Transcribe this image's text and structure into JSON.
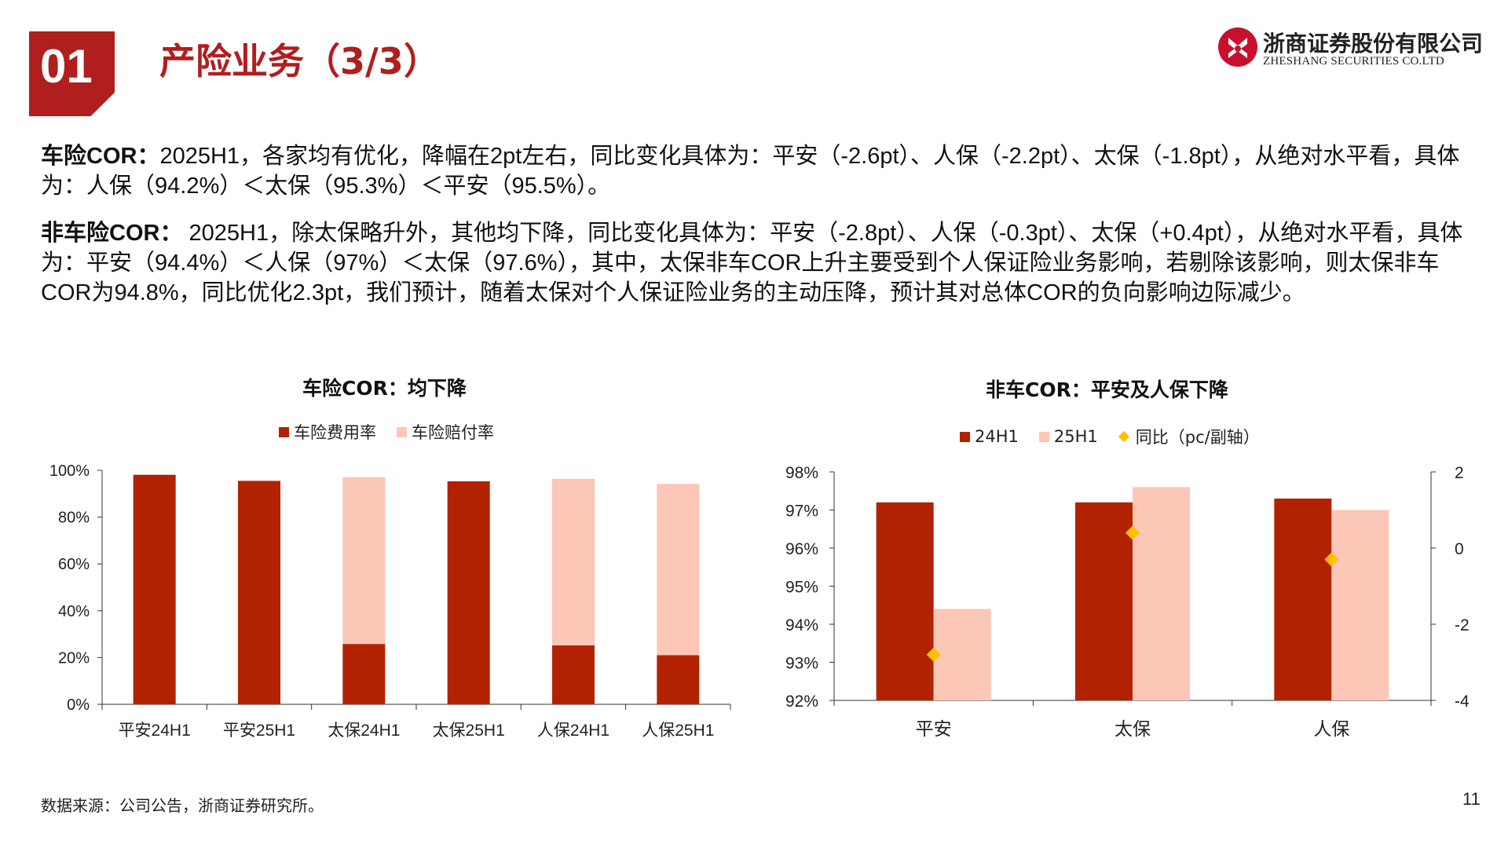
{
  "header": {
    "section_number": "01",
    "title": "产险业务（3/3）",
    "logo": {
      "name_cn": "浙商证券股份有限公司",
      "name_en": "ZHESHANG SECURITIES CO.LTD"
    }
  },
  "paragraphs": {
    "p1_label": "车险COR：",
    "p1_text": "2025H1，各家均有优化，降幅在2pt左右，同比变化具体为：平安（-2.6pt）、人保（-2.2pt）、太保（-1.8pt），从绝对水平看，具体为：人保（94.2%）＜太保（95.3%）＜平安（95.5%）。",
    "p2_label": "非车险COR：",
    "p2_text": " 2025H1，除太保略升外，其他均下降，同比变化具体为：平安（-2.8pt）、人保（-0.3pt）、太保（+0.4pt），从绝对水平看，具体为：平安（94.4%）＜人保（97%）＜太保（97.6%），其中，太保非车COR上升主要受到个人保证险业务影响，若剔除该影响，则太保非车COR为94.8%，同比优化2.3pt，我们预计，随着太保对个人保证险业务的主动压降，预计其对总体COR的负向影响边际减少。"
  },
  "chart_data": [
    {
      "type": "bar",
      "stacked": true,
      "title": "车险COR：均下降",
      "categories": [
        "平安24H1",
        "平安25H1",
        "太保24H1",
        "太保25H1",
        "人保24H1",
        "人保25H1"
      ],
      "series": [
        {
          "name": "车险费用率",
          "color": "#b22200",
          "values": [
            98.1,
            95.5,
            25.8,
            95.3,
            25.2,
            21.0
          ]
        },
        {
          "name": "车险赔付率",
          "color": "#fcc7b7",
          "values": [
            0,
            0,
            71.3,
            0,
            71.2,
            73.2
          ]
        }
      ],
      "ylim": [
        0,
        100
      ],
      "yticks": [
        "0%",
        "20%",
        "40%",
        "60%",
        "80%",
        "100%"
      ],
      "grid": false,
      "legend": "top"
    },
    {
      "type": "bar",
      "title": "非车COR：平安及人保下降",
      "categories": [
        "平安",
        "太保",
        "人保"
      ],
      "series": [
        {
          "name": "24H1",
          "color": "#b22200",
          "axis": "left",
          "values": [
            97.2,
            97.2,
            97.3
          ]
        },
        {
          "name": "25H1",
          "color": "#fcc7b7",
          "axis": "left",
          "values": [
            94.4,
            97.6,
            97.0
          ]
        },
        {
          "name": "同比（pc/副轴）",
          "type": "scatter",
          "marker": "diamond",
          "color": "#ffc000",
          "axis": "right",
          "values": [
            -2.8,
            0.4,
            -0.3
          ]
        }
      ],
      "ylim": [
        92,
        98
      ],
      "yticks": [
        "92%",
        "93%",
        "94%",
        "95%",
        "96%",
        "97%",
        "98%"
      ],
      "y2lim": [
        -4,
        2
      ],
      "y2ticks": [
        "-4",
        "-2",
        "0",
        "2"
      ],
      "grid": false,
      "legend": "top"
    }
  ],
  "footer": {
    "source": "数据来源：公司公告，浙商证券研究所。",
    "page_number": "11"
  }
}
